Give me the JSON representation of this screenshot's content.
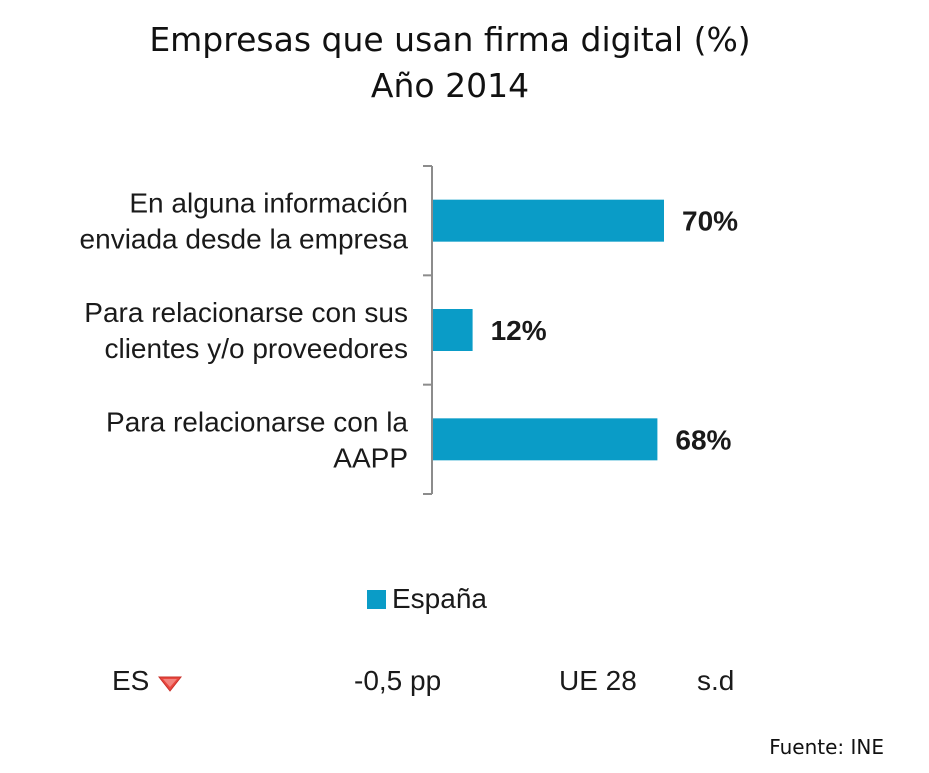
{
  "title": {
    "line1": "Empresas que usan firma digital (%)",
    "line2": "Año 2014"
  },
  "colors": {
    "bar": "#0a9cc7",
    "axis": "#8c8c8c",
    "down_marker": "#e8473f"
  },
  "chart_data": {
    "type": "bar",
    "orientation": "horizontal",
    "title": "Empresas que usan firma digital (%)",
    "subtitle": "Año 2014",
    "categories": [
      [
        "En alguna información",
        "enviada desde la empresa"
      ],
      [
        "Para relacionarse con sus",
        "clientes y/o proveedores"
      ],
      [
        "Para relacionarse con la",
        "AAPP"
      ]
    ],
    "series": [
      {
        "name": "España",
        "values": [
          70,
          12,
          68
        ],
        "labels": [
          "70%",
          "12%",
          "68%"
        ]
      }
    ],
    "xlim": [
      0,
      100
    ],
    "grid": false,
    "legend_position": "bottom-center"
  },
  "legend": {
    "label": "España"
  },
  "footer": {
    "country_code": "ES",
    "trend_icon": "down-triangle-icon",
    "difference": "-0,5 pp",
    "eu_label": "UE 28",
    "eu_value": "s.d"
  },
  "source": "Fuente: INE"
}
